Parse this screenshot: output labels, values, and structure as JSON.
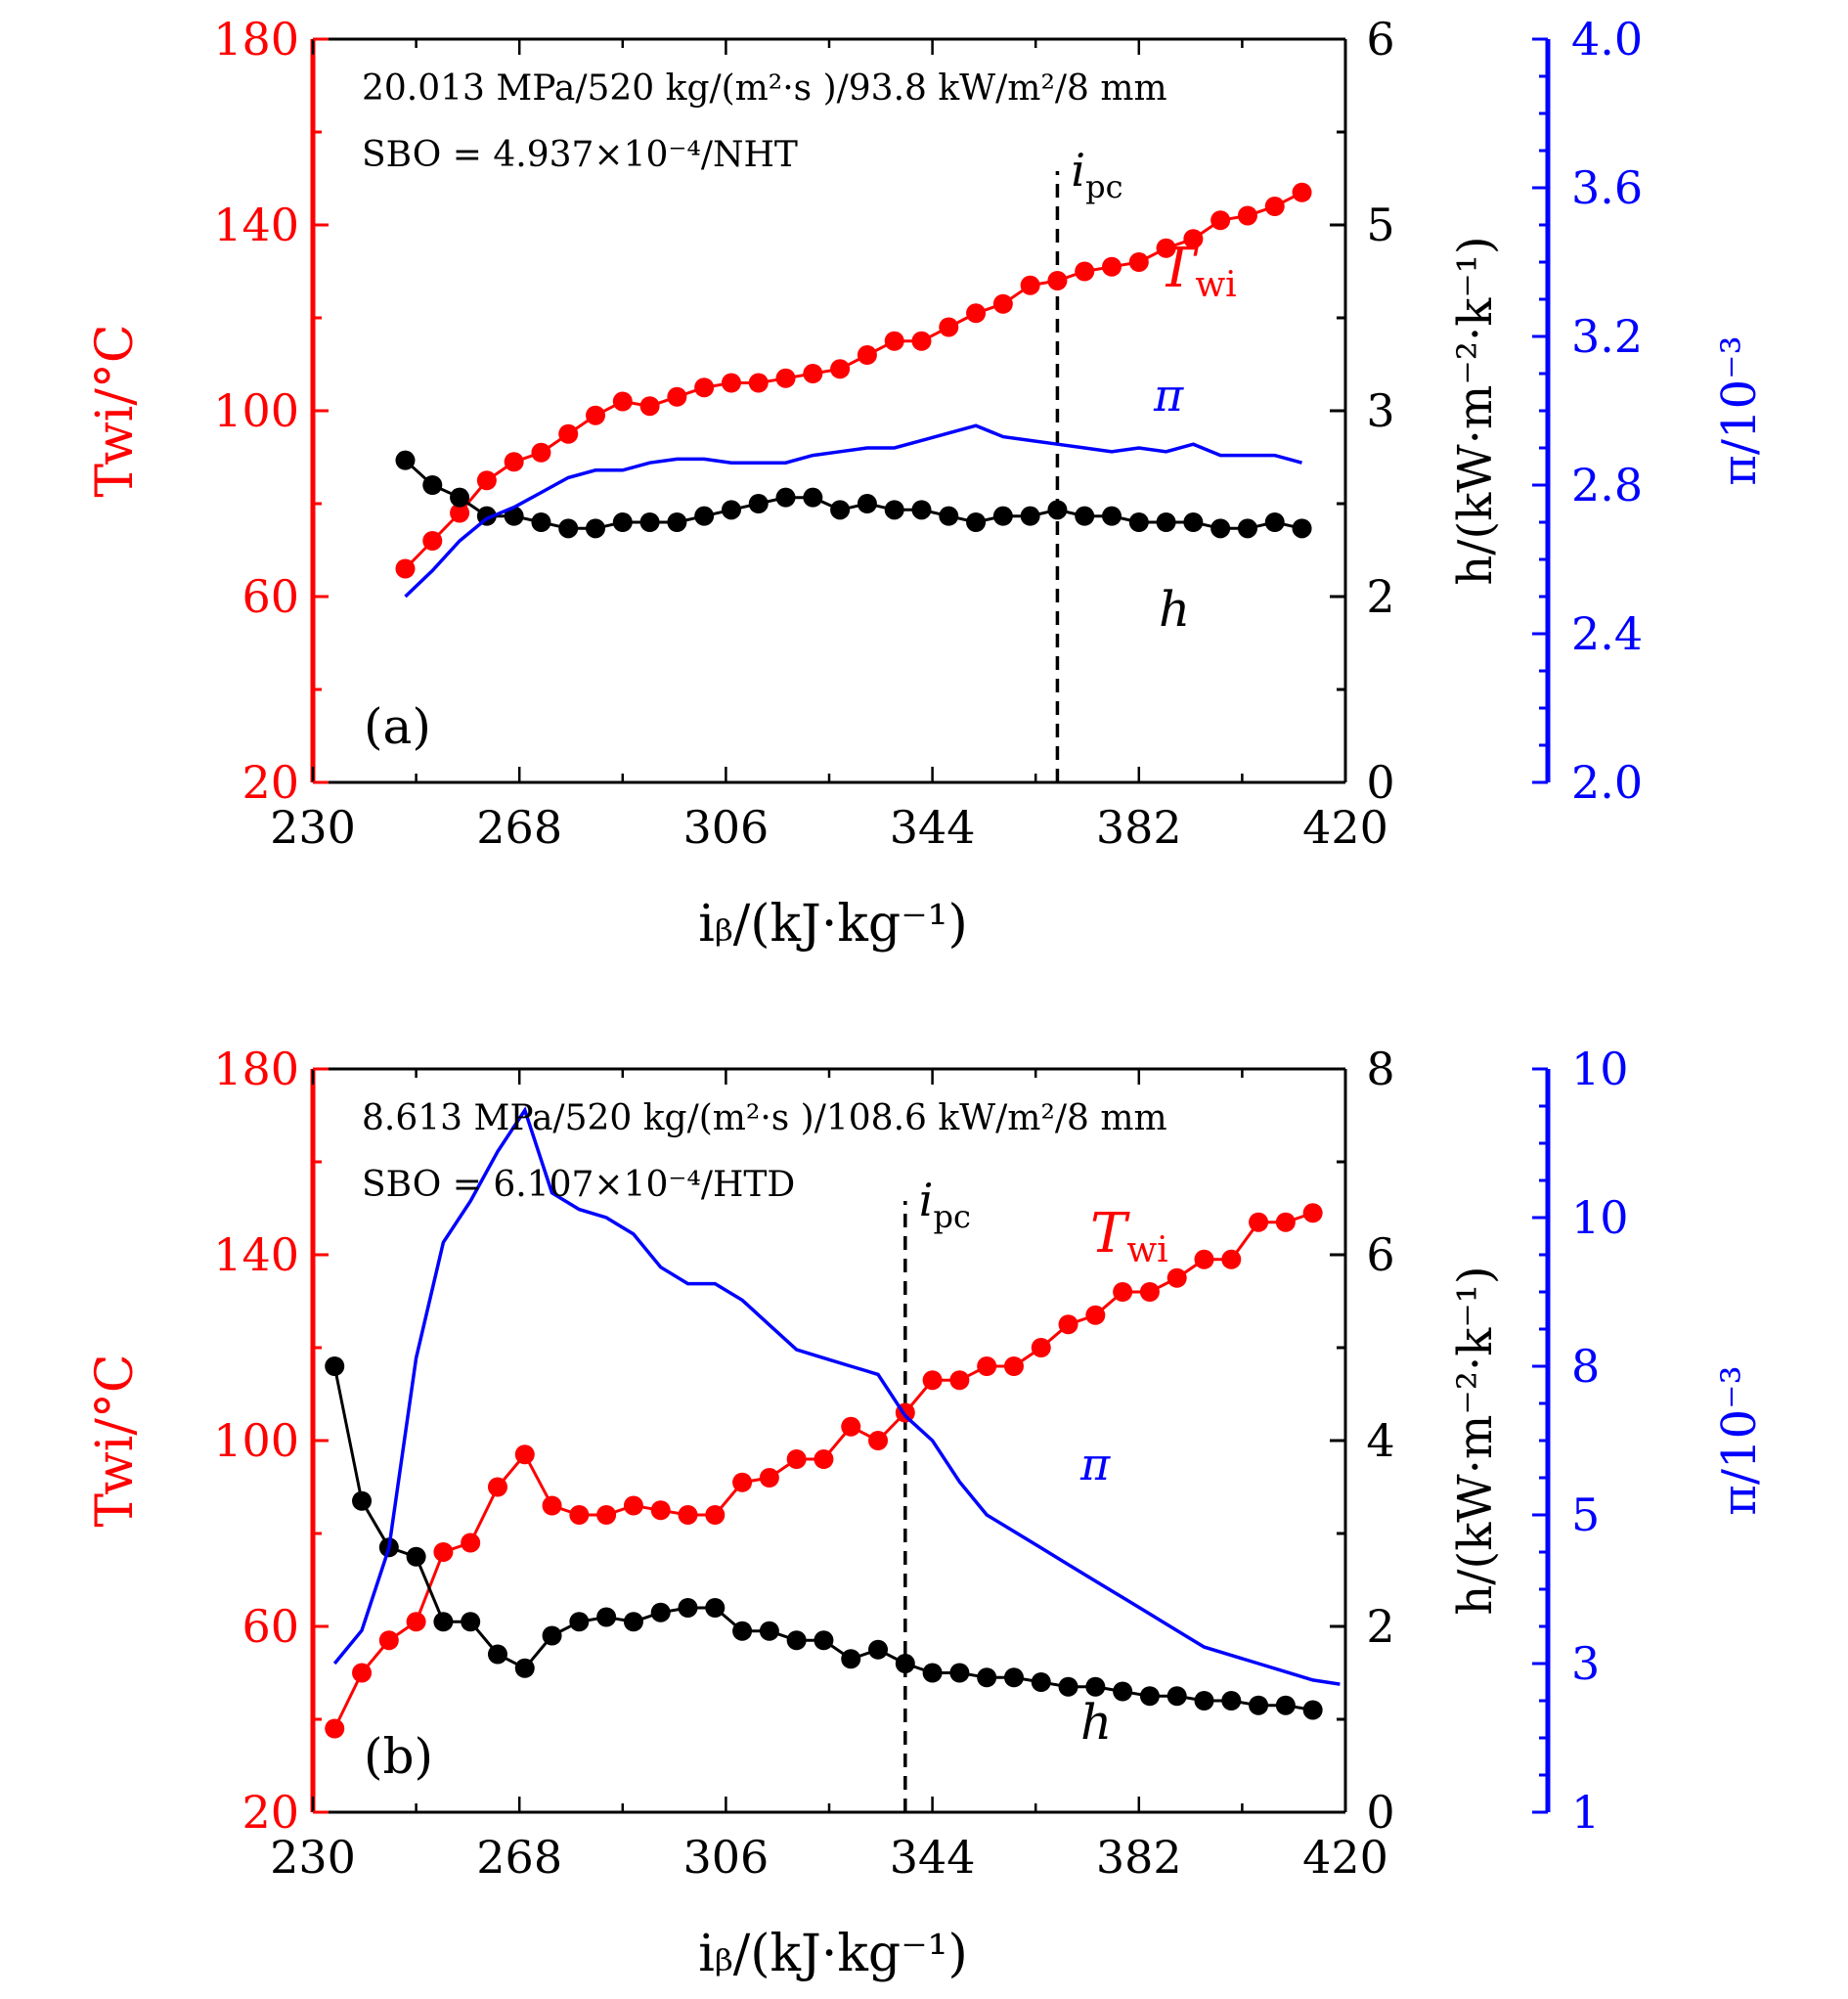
{
  "colors": {
    "twi": "#ff0000",
    "h": "#000000",
    "pi": "#0000ff",
    "axis": "#000000"
  },
  "chart_data": [
    {
      "type": "line",
      "panel_label": "(a)",
      "annotation_line1": "20.013 MPa/520 kg/(m²·s )/93.8 kW/m²/8 mm",
      "annotation_line2": "SBO = 4.937×10⁻⁴/NHT",
      "xlabel": "iᵦ/(kJ·kg⁻¹)",
      "ylabel_left": "Twi/°C",
      "ylabel_right1": "h/(kW·m⁻²·k⁻¹)",
      "ylabel_right2": "π/10⁻³",
      "xlim": [
        230,
        420
      ],
      "xticks": [
        230,
        268,
        306,
        344,
        382,
        420
      ],
      "ylim_left": [
        20,
        180
      ],
      "yticks_left": [
        20,
        60,
        100,
        140,
        180
      ],
      "ylim_right1": [
        0,
        6
      ],
      "yticks_right1": [
        0,
        2,
        3,
        5,
        6
      ],
      "ylim_right2": [
        2.0,
        4.0
      ],
      "yticks_right2": [
        "2.0",
        "2.4",
        "2.8",
        "3.2",
        "3.6",
        "4.0"
      ],
      "ipc": {
        "x": 367,
        "label": "ipc"
      },
      "series_labels": {
        "twi": "Twi",
        "pi": "π",
        "h": "h"
      },
      "series": [
        {
          "name": "Twi",
          "axis": "left",
          "markers": true,
          "x": [
            247,
            252,
            257,
            262,
            267,
            272,
            277,
            282,
            287,
            292,
            297,
            302,
            307,
            312,
            317,
            322,
            327,
            332,
            337,
            342,
            347,
            352,
            357,
            362,
            367,
            372,
            377,
            382,
            387,
            392,
            397,
            402,
            407,
            412
          ],
          "y": [
            66,
            72,
            78,
            85,
            89,
            91,
            95,
            99,
            102,
            101,
            103,
            105,
            106,
            106,
            107,
            108,
            109,
            112,
            115,
            115,
            118,
            121,
            123,
            127,
            128,
            130,
            131,
            132,
            135,
            137,
            141,
            142,
            144,
            147
          ]
        },
        {
          "name": "h",
          "axis": "right1",
          "markers": true,
          "x": [
            247,
            252,
            257,
            262,
            267,
            272,
            277,
            282,
            287,
            292,
            297,
            302,
            307,
            312,
            317,
            322,
            327,
            332,
            337,
            342,
            347,
            352,
            357,
            362,
            367,
            372,
            377,
            382,
            387,
            392,
            397,
            402,
            407,
            412
          ],
          "y": [
            2.6,
            2.4,
            2.3,
            2.15,
            2.15,
            2.1,
            2.05,
            2.05,
            2.1,
            2.1,
            2.1,
            2.15,
            2.2,
            2.25,
            2.3,
            2.3,
            2.2,
            2.25,
            2.2,
            2.2,
            2.15,
            2.1,
            2.15,
            2.15,
            2.2,
            2.15,
            2.15,
            2.1,
            2.1,
            2.1,
            2.05,
            2.05,
            2.1,
            2.05
          ]
        },
        {
          "name": "π",
          "axis": "right2",
          "markers": false,
          "x": [
            247,
            252,
            257,
            262,
            267,
            272,
            277,
            282,
            287,
            292,
            297,
            302,
            307,
            312,
            317,
            322,
            327,
            332,
            337,
            342,
            347,
            352,
            357,
            362,
            367,
            372,
            377,
            382,
            387,
            392,
            397,
            402,
            407,
            412
          ],
          "y": [
            2.5,
            2.57,
            2.65,
            2.71,
            2.74,
            2.78,
            2.82,
            2.84,
            2.84,
            2.86,
            2.87,
            2.87,
            2.86,
            2.86,
            2.86,
            2.88,
            2.89,
            2.9,
            2.9,
            2.92,
            2.94,
            2.96,
            2.93,
            2.92,
            2.91,
            2.9,
            2.89,
            2.9,
            2.89,
            2.91,
            2.88,
            2.88,
            2.88,
            2.86
          ]
        }
      ]
    },
    {
      "type": "line",
      "panel_label": "(b)",
      "annotation_line1": "8.613 MPa/520 kg/(m²·s )/108.6 kW/m²/8 mm",
      "annotation_line2": "SBO = 6.107×10⁻⁴/HTD",
      "xlabel": "iᵦ/(kJ·kg⁻¹)",
      "ylabel_left": "Twi/°C",
      "ylabel_right1": "h/(kW·m⁻²·k⁻¹)",
      "ylabel_right2": "π/10⁻³",
      "xlim": [
        230,
        420
      ],
      "xticks": [
        230,
        268,
        306,
        344,
        382,
        420
      ],
      "ylim_left": [
        20,
        180
      ],
      "yticks_left": [
        20,
        60,
        100,
        140,
        180
      ],
      "ylim_right1": [
        0,
        8
      ],
      "yticks_right1": [
        0,
        2,
        4,
        6,
        8
      ],
      "ylim_right2": [
        1,
        10
      ],
      "yticks_right2": [
        "1",
        "3",
        "5",
        "8",
        "10",
        "10"
      ],
      "ipc": {
        "x": 339,
        "label": "ipc"
      },
      "series_labels": {
        "twi": "Twi",
        "pi": "π",
        "h": "h"
      },
      "series": [
        {
          "name": "Twi",
          "axis": "left",
          "markers": true,
          "x": [
            234,
            239,
            244,
            249,
            254,
            259,
            264,
            269,
            274,
            279,
            284,
            289,
            294,
            299,
            304,
            309,
            314,
            319,
            324,
            329,
            334,
            339,
            344,
            349,
            354,
            359,
            364,
            369,
            374,
            379,
            384,
            389,
            394,
            399,
            404,
            409,
            414
          ],
          "y": [
            38,
            50,
            57,
            61,
            76,
            78,
            90,
            97,
            86,
            84,
            84,
            86,
            85,
            84,
            84,
            91,
            92,
            96,
            96,
            103,
            100,
            106,
            113,
            113,
            116,
            116,
            120,
            125,
            127,
            132,
            132,
            135,
            139,
            139,
            147,
            147,
            149
          ]
        },
        {
          "name": "h",
          "axis": "right1",
          "markers": true,
          "x": [
            234,
            239,
            244,
            249,
            254,
            259,
            264,
            269,
            274,
            279,
            284,
            289,
            294,
            299,
            304,
            309,
            314,
            319,
            324,
            329,
            334,
            339,
            344,
            349,
            354,
            359,
            364,
            369,
            374,
            379,
            384,
            389,
            394,
            399,
            404,
            409,
            414
          ],
          "y": [
            4.8,
            3.35,
            2.85,
            2.75,
            2.05,
            2.05,
            1.7,
            1.55,
            1.9,
            2.05,
            2.1,
            2.05,
            2.15,
            2.2,
            2.2,
            1.95,
            1.95,
            1.85,
            1.85,
            1.65,
            1.75,
            1.6,
            1.5,
            1.5,
            1.45,
            1.45,
            1.4,
            1.35,
            1.35,
            1.3,
            1.25,
            1.25,
            1.2,
            1.2,
            1.15,
            1.15,
            1.1
          ]
        },
        {
          "name": "π",
          "axis": "right2",
          "markers": false,
          "x": [
            234,
            239,
            244,
            249,
            254,
            259,
            264,
            269,
            274,
            279,
            284,
            289,
            294,
            299,
            304,
            309,
            314,
            319,
            324,
            329,
            334,
            339,
            344,
            349,
            354,
            359,
            364,
            369,
            374,
            379,
            384,
            389,
            394,
            399,
            404,
            409,
            414,
            419
          ],
          "y": [
            2.8,
            3.2,
            4.2,
            6.5,
            7.9,
            8.4,
            9.0,
            9.5,
            8.5,
            8.3,
            8.2,
            8.0,
            7.6,
            7.4,
            7.4,
            7.2,
            6.9,
            6.6,
            6.5,
            6.4,
            6.3,
            5.8,
            5.5,
            5.0,
            4.6,
            4.4,
            4.2,
            4.0,
            3.8,
            3.6,
            3.4,
            3.2,
            3.0,
            2.9,
            2.8,
            2.7,
            2.6,
            2.55
          ]
        }
      ]
    }
  ]
}
